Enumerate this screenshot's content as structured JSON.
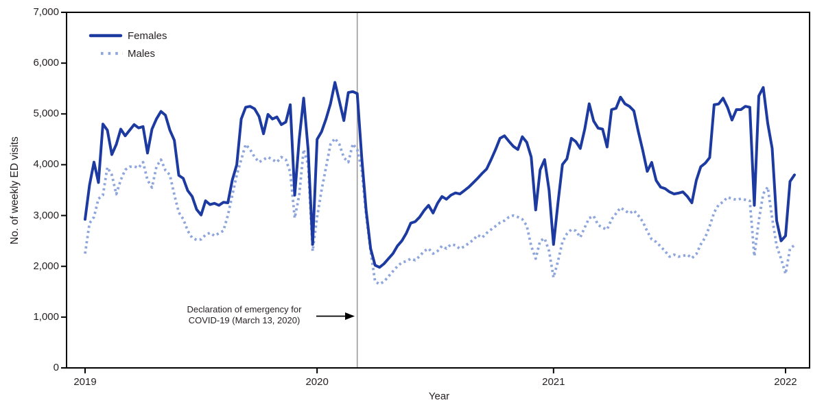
{
  "figure": {
    "background": "#ffffff",
    "axis_color": "#000000",
    "text_color": "#231f20",
    "event_line_color": "#9b9b9b"
  },
  "annotation": {
    "line1": "Declaration of emergency for",
    "line2": "COVID-19 (March 13, 2020)"
  },
  "chart_data": {
    "type": "line",
    "xlabel": "Year",
    "ylabel": "No. of weekly ED visits",
    "ylim": [
      0,
      7000
    ],
    "grid": false,
    "legend_position": "top-left",
    "x_unit": "week",
    "x_tick_labels": [
      "2019",
      "2020",
      "2021",
      "2022"
    ],
    "x_tick_week_indices": [
      0,
      52,
      105,
      157
    ],
    "y_tick_values": [
      0,
      1000,
      2000,
      3000,
      4000,
      5000,
      6000,
      7000
    ],
    "y_tick_labels": [
      "0",
      "1,000",
      "2,000",
      "3,000",
      "4,000",
      "5,000",
      "6,000",
      "7,000"
    ],
    "weeks_per_year": {
      "2019": 52,
      "2020": 53,
      "2021": 52,
      "2022": 3
    },
    "event_line": {
      "week_index": 61,
      "label": "Declaration of emergency for COVID-19 (March 13, 2020)"
    },
    "series": [
      {
        "name": "Females",
        "line_style": "solid",
        "color": "#1c3aa0",
        "values": [
          2925,
          3600,
          4050,
          3650,
          4800,
          4680,
          4200,
          4400,
          4700,
          4570,
          4680,
          4790,
          4725,
          4750,
          4230,
          4700,
          4900,
          5050,
          4975,
          4680,
          4480,
          3790,
          3730,
          3490,
          3375,
          3120,
          3010,
          3290,
          3215,
          3240,
          3200,
          3260,
          3250,
          3700,
          4000,
          4900,
          5130,
          5150,
          5100,
          4950,
          4610,
          4990,
          4900,
          4940,
          4790,
          4840,
          5180,
          3400,
          4500,
          5310,
          4300,
          2430,
          4500,
          4650,
          4900,
          5200,
          5620,
          5250,
          4870,
          5420,
          5440,
          5400,
          4150,
          3100,
          2350,
          2020,
          1980,
          2050,
          2150,
          2250,
          2400,
          2500,
          2650,
          2850,
          2880,
          2970,
          3100,
          3200,
          3050,
          3240,
          3375,
          3320,
          3400,
          3445,
          3425,
          3490,
          3560,
          3645,
          3735,
          3830,
          3915,
          4100,
          4300,
          4520,
          4570,
          4460,
          4360,
          4300,
          4550,
          4440,
          4150,
          3110,
          3900,
          4100,
          3500,
          2430,
          3250,
          4005,
          4115,
          4520,
          4455,
          4320,
          4700,
          5200,
          4860,
          4720,
          4700,
          4350,
          5085,
          5110,
          5330,
          5200,
          5150,
          5060,
          4650,
          4280,
          3870,
          4045,
          3690,
          3560,
          3530,
          3465,
          3425,
          3440,
          3465,
          3375,
          3250,
          3690,
          3960,
          4030,
          4140,
          5180,
          5195,
          5310,
          5130,
          4880,
          5085,
          5085,
          5150,
          5130,
          3200,
          5355,
          5520,
          4815,
          4320,
          2900,
          2500,
          2600,
          3670,
          3800
        ]
      },
      {
        "name": "Males",
        "line_style": "dotted",
        "color": "#8ea6dc",
        "values": [
          2250,
          2850,
          2970,
          3330,
          3400,
          3950,
          3800,
          3420,
          3700,
          3900,
          3960,
          3965,
          3940,
          4050,
          3700,
          3550,
          3960,
          4100,
          3890,
          3800,
          3410,
          3060,
          2930,
          2700,
          2560,
          2520,
          2530,
          2620,
          2660,
          2600,
          2650,
          2700,
          3000,
          3400,
          3800,
          4100,
          4400,
          4300,
          4150,
          4050,
          4100,
          4150,
          4100,
          4050,
          4150,
          4100,
          3850,
          2950,
          3400,
          4300,
          4000,
          2300,
          2970,
          3500,
          3950,
          4400,
          4520,
          4400,
          4140,
          4050,
          4410,
          4300,
          3900,
          3000,
          2300,
          1700,
          1650,
          1700,
          1800,
          1900,
          2000,
          2075,
          2100,
          2150,
          2120,
          2200,
          2300,
          2350,
          2250,
          2300,
          2400,
          2350,
          2430,
          2415,
          2345,
          2390,
          2455,
          2520,
          2615,
          2565,
          2655,
          2725,
          2790,
          2860,
          2900,
          2970,
          3000,
          2970,
          2925,
          2800,
          2400,
          2150,
          2500,
          2550,
          2300,
          1780,
          2100,
          2480,
          2640,
          2725,
          2700,
          2570,
          2765,
          2950,
          2990,
          2815,
          2760,
          2725,
          2925,
          3040,
          3155,
          3100,
          3040,
          3100,
          3000,
          2880,
          2690,
          2530,
          2480,
          2390,
          2300,
          2190,
          2230,
          2190,
          2205,
          2230,
          2160,
          2240,
          2430,
          2570,
          2790,
          3060,
          3210,
          3270,
          3360,
          3330,
          3310,
          3330,
          3310,
          3290,
          2200,
          2900,
          3430,
          3560,
          2950,
          2400,
          2150,
          1850,
          2350,
          2415
        ]
      }
    ]
  }
}
